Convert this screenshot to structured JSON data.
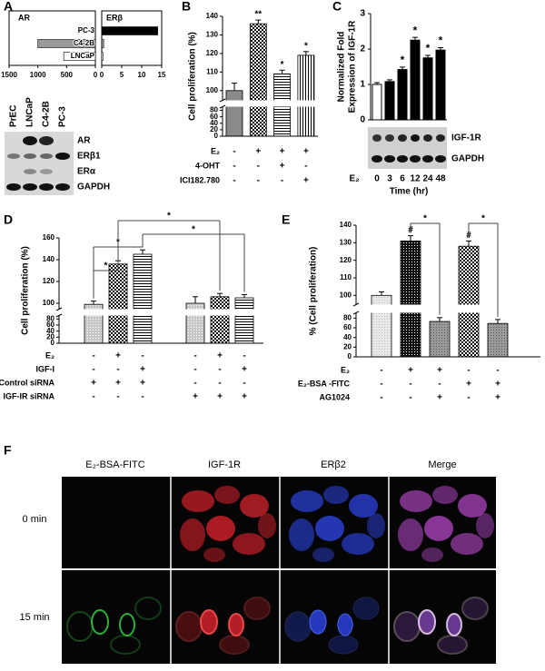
{
  "chart_data": [
    {
      "panel": "A",
      "type": "paired-hbar",
      "categories": [
        "PC-3",
        "C4-2B",
        "LNCaP"
      ],
      "series": [
        {
          "name": "AR",
          "values": [
            0,
            1000,
            550
          ],
          "colors": [
            "#ffffff",
            "#999999",
            "#ffffff"
          ],
          "xlim": [
            1500,
            0
          ],
          "xticks": [
            1500,
            1000,
            500,
            0
          ]
        },
        {
          "name": "ERβ",
          "values": [
            14,
            0.5,
            0.3
          ],
          "colors": [
            "#000000",
            "#999999",
            "#ffffff"
          ],
          "xlim": [
            0,
            15
          ],
          "xticks": [
            0,
            5,
            10,
            15
          ]
        }
      ]
    },
    {
      "panel": "B",
      "type": "broken-bar",
      "ylabel": "Cell proliferation (%)",
      "values": [
        100,
        136,
        109,
        119
      ],
      "errors": [
        4,
        2,
        2,
        2
      ],
      "value_annotations": [
        null,
        "**",
        "*",
        "*"
      ],
      "bar_patterns": [
        "gray",
        "checker",
        "hstripe",
        "vstripe"
      ],
      "ylim": [
        0,
        140
      ],
      "axis_break": [
        90,
        95
      ],
      "yticks": [
        0,
        20,
        40,
        60,
        80,
        100,
        110,
        120,
        130,
        140
      ],
      "conditions": [
        {
          "name": "E₂",
          "signs": [
            "-",
            "+",
            "+",
            "+"
          ]
        },
        {
          "name": "4-OHT",
          "signs": [
            "-",
            "-",
            "+",
            "-"
          ]
        },
        {
          "name": "ICI182.780",
          "signs": [
            "-",
            "-",
            "-",
            "+"
          ]
        }
      ]
    },
    {
      "panel": "C",
      "type": "bar",
      "ylabel": [
        "Normalized Fold",
        "Expression of IGF-1R"
      ],
      "categories": [
        "0",
        "3",
        "6",
        "12",
        "24",
        "48"
      ],
      "category_row": "E₂",
      "xlabel": "Time (hr)",
      "values": [
        1,
        1.08,
        1.42,
        2.25,
        1.75,
        1.97
      ],
      "errors": [
        0.05,
        0.05,
        0.07,
        0.08,
        0.07,
        0.07
      ],
      "value_annotations": [
        null,
        null,
        "*",
        "*",
        "*",
        "*"
      ],
      "colors": [
        "#ffffff",
        "#000000",
        "#000000",
        "#000000",
        "#000000",
        "#000000"
      ],
      "ylim": [
        0,
        3
      ],
      "yticks": [
        0,
        1,
        2,
        3
      ]
    },
    {
      "panel": "D",
      "type": "broken-bar",
      "ylabel": "Cell proliferation (%)",
      "values": [
        99,
        136,
        145,
        100,
        106,
        105
      ],
      "errors": [
        3,
        3,
        4,
        6,
        3,
        3
      ],
      "value_annotations": [
        null,
        null,
        null,
        null,
        null,
        null
      ],
      "bar_patterns": [
        "dots",
        "checker",
        "hstripe",
        "dots",
        "checker",
        "hstripe"
      ],
      "ylim": [
        0,
        160
      ],
      "axis_break": [
        90,
        95
      ],
      "yticks": [
        0,
        20,
        40,
        60,
        80,
        100,
        120,
        140,
        160
      ],
      "comparisons": [
        {
          "bars": [
            0,
            1
          ],
          "label": "*"
        },
        {
          "bars": [
            0,
            2
          ],
          "label": "*"
        },
        {
          "bars": [
            1,
            4
          ],
          "label": "*"
        },
        {
          "bars": [
            2,
            5
          ],
          "label": "*"
        }
      ],
      "conditions": [
        {
          "name": "E₂",
          "signs": [
            "-",
            "+",
            "-",
            "-",
            "+",
            "-"
          ]
        },
        {
          "name": "IGF-I",
          "signs": [
            "-",
            "-",
            "+",
            "-",
            "-",
            "+"
          ]
        },
        {
          "name": "Control siRNA",
          "signs": [
            "+",
            "+",
            "+",
            "-",
            "-",
            "-"
          ]
        },
        {
          "name": "IGF-IR siRNA",
          "signs": [
            "-",
            "-",
            "-",
            "+",
            "+",
            "+"
          ]
        }
      ]
    },
    {
      "panel": "E",
      "type": "broken-bar",
      "ylabel": "% (Cell proliferation)",
      "values": [
        100,
        131,
        73,
        128,
        69
      ],
      "errors": [
        2,
        3,
        8,
        3,
        8
      ],
      "value_annotations": [
        null,
        "#",
        null,
        "#",
        null
      ],
      "bar_patterns": [
        "lightdots",
        "darkchecker",
        "graydots",
        "checker",
        "graydots"
      ],
      "ylim": [
        0,
        140
      ],
      "axis_break": [
        90,
        95
      ],
      "yticks": [
        0,
        20,
        40,
        60,
        80,
        100,
        110,
        120,
        130,
        140
      ],
      "comparisons": [
        {
          "bars": [
            1,
            2
          ],
          "label": "*"
        },
        {
          "bars": [
            3,
            4
          ],
          "label": "*"
        }
      ],
      "conditions": [
        {
          "name": "E₂",
          "signs": [
            "-",
            "+",
            "+",
            "-",
            "-"
          ]
        },
        {
          "name": "E₂-BSA -FITC",
          "signs": [
            "-",
            "-",
            "-",
            "+",
            "+"
          ]
        },
        {
          "name": "AG1024",
          "signs": [
            "-",
            "-",
            "+",
            "-",
            "+"
          ]
        }
      ]
    }
  ],
  "blots": [
    {
      "lanes": [
        "PrEC",
        "LNCaP",
        "C4-2B",
        "PC-3"
      ],
      "rows": [
        "AR",
        "ERβ1",
        "ERα",
        "GAPDH"
      ]
    },
    {
      "rows": [
        "IGF-1R",
        "GAPDH"
      ]
    }
  ],
  "microscopy": {
    "panel": "F",
    "columns": [
      "E₂-BSA-FITC",
      "IGF-1R",
      "ERβ2",
      "Merge"
    ],
    "rows": [
      "0 min",
      "15 min"
    ]
  }
}
